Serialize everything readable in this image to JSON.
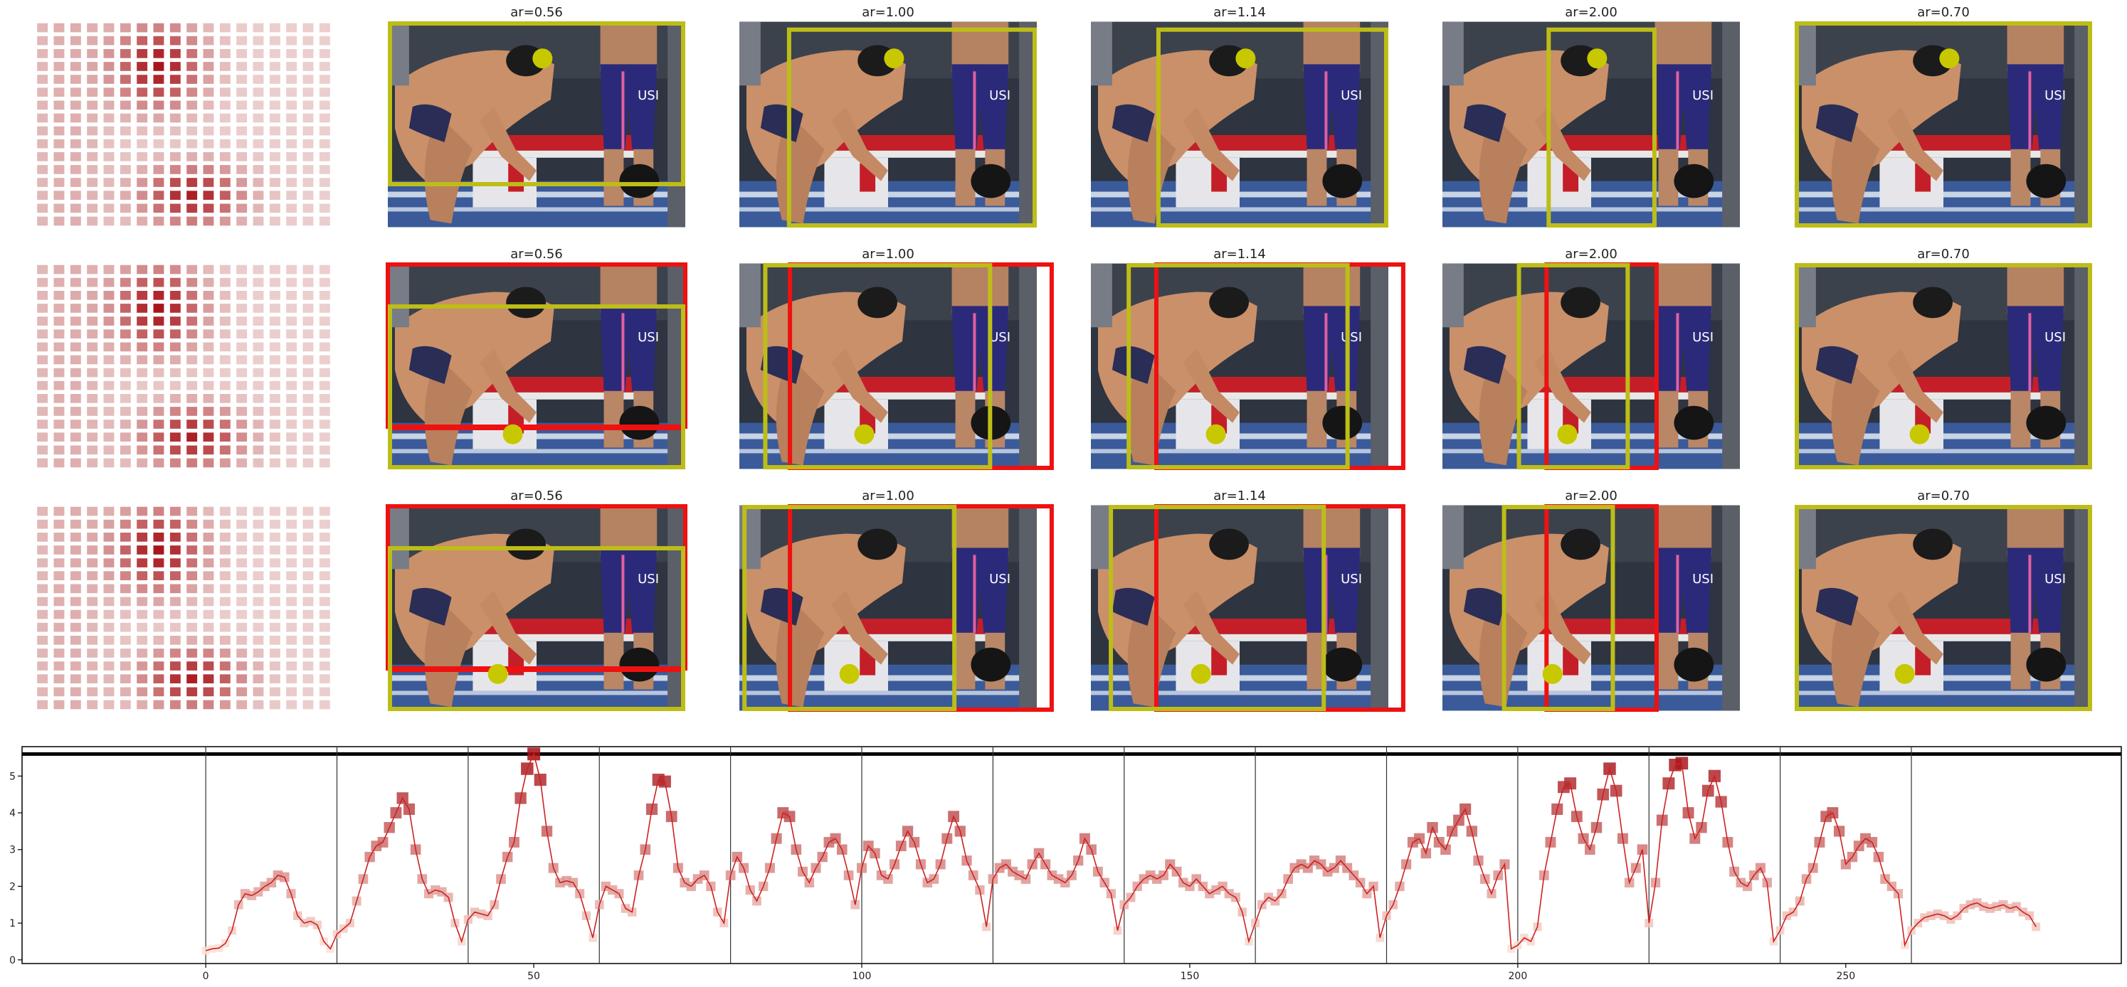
{
  "panel_titles": [
    "ar=0.56",
    "ar=1.00",
    "ar=1.14",
    "ar=2.00",
    "ar=0.70"
  ],
  "photo_overlay_text": "USI",
  "colors": {
    "box_yellow": "#bdbd18",
    "box_red": "#ee1111",
    "dot_yellow": "#c8c800",
    "line_red": "#cc2222",
    "heat_low": "#fde4da",
    "heat_high": "#a50f15"
  },
  "chart_data": {
    "type": "line",
    "title": "",
    "xlabel": "",
    "ylabel": "",
    "xlim": [
      -28,
      292
    ],
    "ylim": [
      -0.1,
      5.8
    ],
    "x_ticks": [
      0,
      50,
      100,
      150,
      200,
      250
    ],
    "y_ticks": [
      0,
      1,
      2,
      3,
      4,
      5
    ],
    "segment_boundaries": [
      0,
      20,
      40,
      60,
      80,
      100,
      120,
      140,
      160,
      180,
      200,
      220,
      240,
      260
    ],
    "top_hline_y": 5.6,
    "series": [
      {
        "values": [
          0.25,
          0.3,
          0.32,
          0.45,
          0.8,
          1.5,
          1.8,
          1.75,
          1.85,
          2.0,
          2.1,
          2.3,
          2.25,
          1.8,
          1.2,
          1.0,
          1.05,
          0.95,
          0.5,
          0.3,
          0.7,
          0.85,
          1.0,
          1.6,
          2.2,
          2.8,
          3.1,
          3.2,
          3.6,
          4.0,
          4.4,
          4.1,
          3.0,
          2.2,
          1.8,
          1.9,
          1.85,
          1.7,
          1.0,
          0.5,
          1.1,
          1.3,
          1.25,
          1.2,
          1.5,
          2.2,
          2.8,
          3.2,
          4.4,
          5.2,
          5.6,
          4.9,
          3.5,
          2.5,
          2.1,
          2.15,
          2.1,
          1.8,
          1.2,
          0.6,
          1.5,
          2.0,
          1.9,
          1.8,
          1.4,
          1.3,
          2.3,
          3.0,
          4.1,
          4.9,
          4.85,
          3.9,
          2.5,
          2.1,
          2.0,
          2.2,
          2.3,
          2.0,
          1.3,
          1.0,
          2.3,
          2.8,
          2.5,
          1.9,
          1.6,
          2.0,
          2.5,
          3.3,
          4.0,
          3.9,
          3.0,
          2.4,
          2.1,
          2.5,
          2.8,
          3.2,
          3.3,
          3.0,
          2.3,
          1.5,
          2.5,
          3.1,
          2.9,
          2.3,
          2.2,
          2.6,
          3.1,
          3.5,
          3.2,
          2.6,
          2.1,
          2.2,
          2.6,
          3.3,
          3.9,
          3.5,
          2.7,
          2.3,
          1.9,
          0.9,
          2.2,
          2.5,
          2.6,
          2.4,
          2.3,
          2.2,
          2.6,
          2.9,
          2.6,
          2.3,
          2.2,
          2.1,
          2.3,
          2.7,
          3.3,
          3.0,
          2.4,
          2.1,
          1.8,
          0.8,
          1.5,
          1.7,
          2.0,
          2.2,
          2.3,
          2.2,
          2.3,
          2.6,
          2.4,
          2.1,
          2.0,
          2.2,
          2.0,
          1.8,
          1.9,
          2.0,
          1.8,
          1.7,
          1.3,
          0.5,
          1.0,
          1.5,
          1.7,
          1.6,
          1.8,
          2.2,
          2.5,
          2.6,
          2.5,
          2.7,
          2.6,
          2.4,
          2.5,
          2.7,
          2.5,
          2.3,
          2.1,
          1.8,
          2.0,
          0.6,
          1.2,
          1.5,
          2.0,
          2.6,
          3.2,
          3.3,
          2.9,
          3.6,
          3.2,
          3.0,
          3.5,
          3.8,
          4.1,
          3.5,
          2.7,
          2.2,
          1.8,
          2.3,
          2.6,
          0.3,
          0.4,
          0.6,
          0.5,
          0.9,
          2.3,
          3.2,
          4.1,
          4.7,
          4.8,
          3.9,
          3.3,
          3.0,
          3.6,
          4.5,
          5.2,
          4.6,
          3.3,
          2.1,
          2.5,
          3.0,
          1.0,
          2.1,
          3.8,
          4.8,
          5.3,
          5.35,
          4.0,
          3.3,
          3.6,
          4.6,
          5.0,
          4.3,
          3.2,
          2.4,
          2.1,
          2.0,
          2.3,
          2.5,
          2.1,
          0.5,
          0.8,
          1.2,
          1.3,
          1.6,
          2.2,
          2.5,
          3.2,
          3.9,
          4.0,
          3.5,
          2.6,
          2.8,
          3.1,
          3.3,
          3.2,
          2.8,
          2.2,
          2.0,
          1.8,
          0.4,
          0.8,
          1.0,
          1.15,
          1.2,
          1.25,
          1.2,
          1.1,
          1.2,
          1.4,
          1.5,
          1.55,
          1.45,
          1.4,
          1.45,
          1.5,
          1.4,
          1.45,
          1.3,
          1.2,
          0.9
        ]
      }
    ]
  }
}
